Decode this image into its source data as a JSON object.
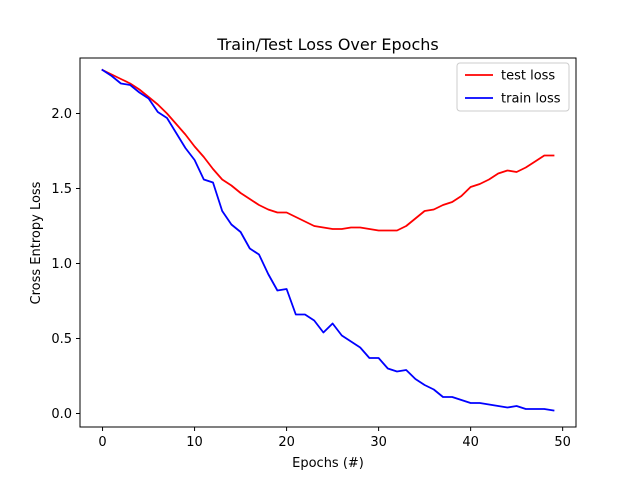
{
  "chart_data": {
    "type": "line",
    "title": "Train/Test Loss Over Epochs",
    "xlabel": "Epochs (#)",
    "ylabel": "Cross Entropy Loss",
    "xlim": [
      -2.45,
      51.45
    ],
    "ylim": [
      -0.09,
      2.37
    ],
    "xticks": [
      0,
      10,
      20,
      30,
      40,
      50
    ],
    "xtick_labels": [
      "0",
      "10",
      "20",
      "30",
      "40",
      "50"
    ],
    "yticks": [
      0.0,
      0.5,
      1.0,
      1.5,
      2.0
    ],
    "ytick_labels": [
      "0.0",
      "0.5",
      "1.0",
      "1.5",
      "2.0"
    ],
    "grid": false,
    "legend_position": "top-right",
    "x": [
      0,
      1,
      2,
      3,
      4,
      5,
      6,
      7,
      8,
      9,
      10,
      11,
      12,
      13,
      14,
      15,
      16,
      17,
      18,
      19,
      20,
      21,
      22,
      23,
      24,
      25,
      26,
      27,
      28,
      29,
      30,
      31,
      32,
      33,
      34,
      35,
      36,
      37,
      38,
      39,
      40,
      41,
      42,
      43,
      44,
      45,
      46,
      47,
      48,
      49
    ],
    "series": [
      {
        "name": "test loss",
        "color": "#ff0000",
        "values": [
          2.29,
          2.26,
          2.23,
          2.2,
          2.16,
          2.11,
          2.06,
          2.0,
          1.93,
          1.86,
          1.78,
          1.71,
          1.63,
          1.56,
          1.52,
          1.47,
          1.43,
          1.39,
          1.36,
          1.34,
          1.34,
          1.31,
          1.28,
          1.25,
          1.24,
          1.23,
          1.23,
          1.24,
          1.24,
          1.23,
          1.22,
          1.22,
          1.22,
          1.25,
          1.3,
          1.35,
          1.36,
          1.39,
          1.41,
          1.45,
          1.51,
          1.53,
          1.56,
          1.6,
          1.62,
          1.61,
          1.64,
          1.68,
          1.72,
          1.72
        ]
      },
      {
        "name": "train loss",
        "color": "#0000ff",
        "values": [
          2.29,
          2.25,
          2.2,
          2.19,
          2.14,
          2.1,
          2.01,
          1.97,
          1.87,
          1.77,
          1.69,
          1.56,
          1.54,
          1.35,
          1.26,
          1.21,
          1.1,
          1.06,
          0.93,
          0.82,
          0.83,
          0.66,
          0.66,
          0.62,
          0.54,
          0.6,
          0.52,
          0.48,
          0.44,
          0.37,
          0.37,
          0.3,
          0.28,
          0.29,
          0.23,
          0.19,
          0.16,
          0.11,
          0.11,
          0.09,
          0.07,
          0.07,
          0.06,
          0.05,
          0.04,
          0.05,
          0.03,
          0.03,
          0.03,
          0.02
        ]
      }
    ]
  }
}
